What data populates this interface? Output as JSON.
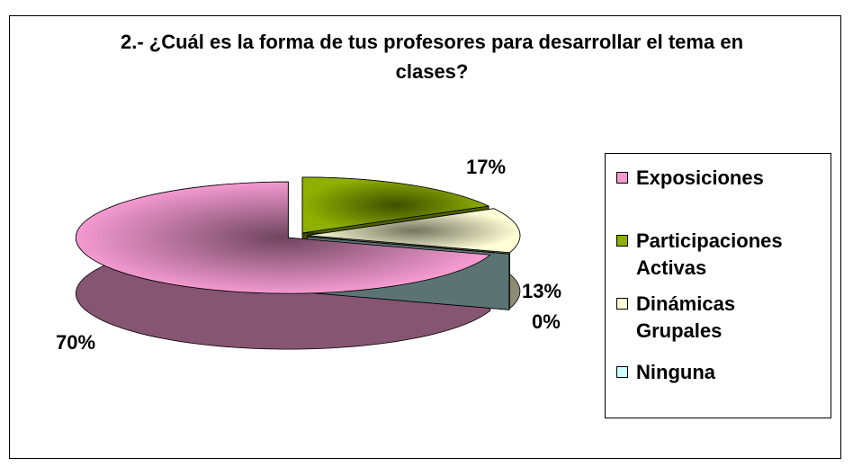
{
  "chart_data": {
    "type": "pie3d",
    "title": "2.- ¿Cuál es la forma de tus profesores para desarrollar el tema en clases?",
    "categories": [
      "Exposiciones",
      "Participaciones Activas",
      "Dinámicas Grupales",
      "Ninguna"
    ],
    "values": [
      70,
      17,
      13,
      0
    ],
    "value_labels": [
      "70%",
      "17%",
      "13%",
      "0%"
    ],
    "colors": [
      "#f49ad0",
      "#8fb000",
      "#ffffd6",
      "#ccffff"
    ],
    "legend": "right"
  }
}
